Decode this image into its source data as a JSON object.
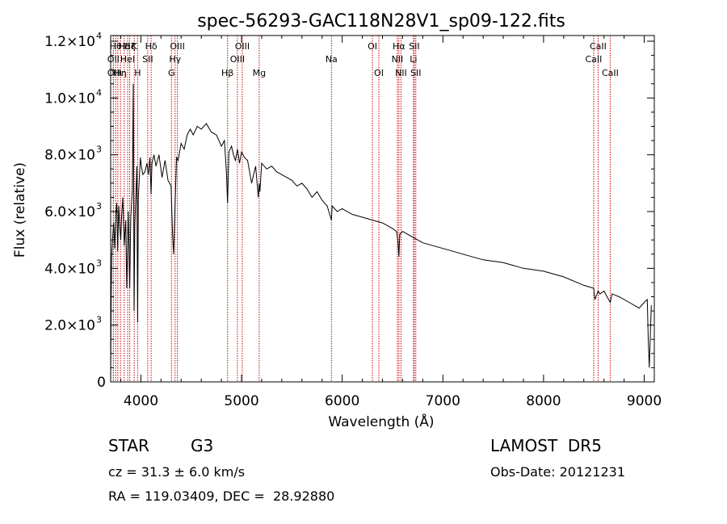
{
  "chart_data": {
    "type": "line",
    "title": "spec-56293-GAC118N28V1_sp09-122.fits",
    "xlabel": "Wavelength (Å)",
    "ylabel": "Flux (relative)",
    "xlim": [
      3700,
      9100
    ],
    "ylim": [
      0,
      12200
    ],
    "x_ticks": [
      {
        "value": 4000,
        "label": "4000"
      },
      {
        "value": 5000,
        "label": "5000"
      },
      {
        "value": 6000,
        "label": "6000"
      },
      {
        "value": 7000,
        "label": "7000"
      },
      {
        "value": 8000,
        "label": "8000"
      },
      {
        "value": 9000,
        "label": "9000"
      }
    ],
    "y_ticks": [
      {
        "value": 0,
        "mant": "0",
        "exp": ""
      },
      {
        "value": 2000,
        "mant": "2.0×10",
        "exp": "3"
      },
      {
        "value": 4000,
        "mant": "4.0×10",
        "exp": "3"
      },
      {
        "value": 6000,
        "mant": "6.0×10",
        "exp": "3"
      },
      {
        "value": 8000,
        "mant": "8.0×10",
        "exp": "3"
      },
      {
        "value": 10000,
        "mant": "1.0×10",
        "exp": "4"
      },
      {
        "value": 12000,
        "mant": "1.2×10",
        "exp": "4"
      }
    ],
    "line_color": "#000000",
    "marker_color": "#cc0000",
    "series": [
      {
        "x": [
          3700,
          3705,
          3710,
          3720,
          3730,
          3740,
          3750,
          3760,
          3770,
          3780,
          3790,
          3800,
          3810,
          3820,
          3835,
          3850,
          3860,
          3875,
          3889,
          3900,
          3915,
          3925,
          3933,
          3940,
          3950,
          3960,
          3968,
          3975,
          3985,
          3995,
          4005,
          4020,
          4040,
          4060,
          4075,
          4090,
          4101,
          4110,
          4130,
          4150,
          4180,
          4210,
          4240,
          4270,
          4300,
          4315,
          4325,
          4340,
          4355,
          4370,
          4400,
          4430,
          4460,
          4490,
          4520,
          4560,
          4600,
          4650,
          4700,
          4750,
          4800,
          4830,
          4850,
          4861,
          4875,
          4900,
          4920,
          4940,
          4960,
          4980,
          5000,
          5030,
          5060,
          5100,
          5140,
          5167,
          5175,
          5183,
          5200,
          5250,
          5300,
          5350,
          5400,
          5450,
          5500,
          5550,
          5600,
          5650,
          5700,
          5750,
          5800,
          5850,
          5893,
          5900,
          5950,
          6000,
          6100,
          6200,
          6300,
          6400,
          6500,
          6540,
          6555,
          6563,
          6572,
          6600,
          6700,
          6800,
          6900,
          7000,
          7200,
          7400,
          7600,
          7800,
          8000,
          8200,
          8400,
          8498,
          8510,
          8542,
          8560,
          8600,
          8662,
          8680,
          8750,
          8850,
          8950,
          9000,
          9030,
          9040,
          9050,
          9070
        ],
        "y": [
          0,
          2800,
          4400,
          5100,
          5600,
          4700,
          5900,
          6300,
          4600,
          6200,
          5500,
          5000,
          5900,
          6500,
          4800,
          5700,
          3300,
          6000,
          3300,
          5800,
          6800,
          10500,
          2500,
          5500,
          6600,
          7600,
          2100,
          6500,
          7200,
          7900,
          7600,
          7300,
          7400,
          7700,
          7300,
          7900,
          6600,
          7700,
          8000,
          7600,
          8000,
          7200,
          7800,
          7100,
          6900,
          5200,
          4500,
          6300,
          7900,
          7800,
          8400,
          8200,
          8700,
          8900,
          8700,
          9000,
          8900,
          9100,
          8800,
          8700,
          8300,
          8500,
          7400,
          6300,
          8100,
          8300,
          8000,
          7800,
          8200,
          7700,
          8100,
          7900,
          7800,
          7000,
          7600,
          6500,
          7000,
          6700,
          7700,
          7500,
          7600,
          7400,
          7300,
          7200,
          7100,
          6900,
          7000,
          6800,
          6500,
          6700,
          6400,
          6200,
          5700,
          6200,
          6000,
          6100,
          5900,
          5800,
          5700,
          5600,
          5400,
          5300,
          4900,
          4400,
          5200,
          5300,
          5100,
          4900,
          4800,
          4700,
          4500,
          4300,
          4200,
          4000,
          3900,
          3700,
          3400,
          3300,
          2900,
          3200,
          3100,
          3200,
          2800,
          3100,
          3000,
          2800,
          2600,
          2800,
          2900,
          1500,
          500,
          2700
        ]
      }
    ],
    "line_markers": [
      {
        "x": 3727,
        "label": "OII",
        "row": 1
      },
      {
        "x": 3727,
        "label": "OII",
        "row": 2
      },
      {
        "x": 3750,
        "label": "Hθ",
        "row": 0
      },
      {
        "x": 3771,
        "label": "Hι",
        "row": 2
      },
      {
        "x": 3798,
        "label": "Hη",
        "row": 2
      },
      {
        "x": 3835,
        "label": "Hδ",
        "row": 0
      },
      {
        "x": 3869,
        "label": "HeI",
        "row": 1
      },
      {
        "x": 3889,
        "label": "Hζ",
        "row": 0
      },
      {
        "x": 3934,
        "label": "K",
        "row": 0
      },
      {
        "x": 3968,
        "label": "H",
        "row": 2
      },
      {
        "x": 4068,
        "label": "SII",
        "row": 1
      },
      {
        "x": 4102,
        "label": "Hδ",
        "row": 0
      },
      {
        "x": 4304,
        "label": "G",
        "row": 2
      },
      {
        "x": 4340,
        "label": "Hγ",
        "row": 1
      },
      {
        "x": 4363,
        "label": "OIII",
        "row": 0
      },
      {
        "x": 4861,
        "label": "Hβ",
        "row": 2
      },
      {
        "x": 4959,
        "label": "OIII",
        "row": 1
      },
      {
        "x": 5007,
        "label": "OIII",
        "row": 0
      },
      {
        "x": 5175,
        "label": "Mg",
        "row": 2
      },
      {
        "x": 5893,
        "label": "Na",
        "row": 1
      },
      {
        "x": 6300,
        "label": "OI",
        "row": 0
      },
      {
        "x": 6364,
        "label": "OI",
        "row": 2
      },
      {
        "x": 6548,
        "label": "NII",
        "row": 1
      },
      {
        "x": 6563,
        "label": "Hα",
        "row": 0
      },
      {
        "x": 6584,
        "label": "NII",
        "row": 2
      },
      {
        "x": 6708,
        "label": "Li",
        "row": 1
      },
      {
        "x": 6716,
        "label": "SII",
        "row": 0
      },
      {
        "x": 6731,
        "label": "SII",
        "row": 2
      },
      {
        "x": 8498,
        "label": "CaII",
        "row": 1
      },
      {
        "x": 8542,
        "label": "CaII",
        "row": 0
      },
      {
        "x": 8662,
        "label": "CaII",
        "row": 2
      }
    ]
  },
  "info": {
    "object_class": "STAR",
    "subclass": "G3",
    "survey": "LAMOST  DR5",
    "cz_line": "cz = 31.3 ± 6.0 km/s",
    "obs_date": "Obs-Date: 20121231",
    "coords": "RA = 119.03409, DEC =  28.92880"
  }
}
